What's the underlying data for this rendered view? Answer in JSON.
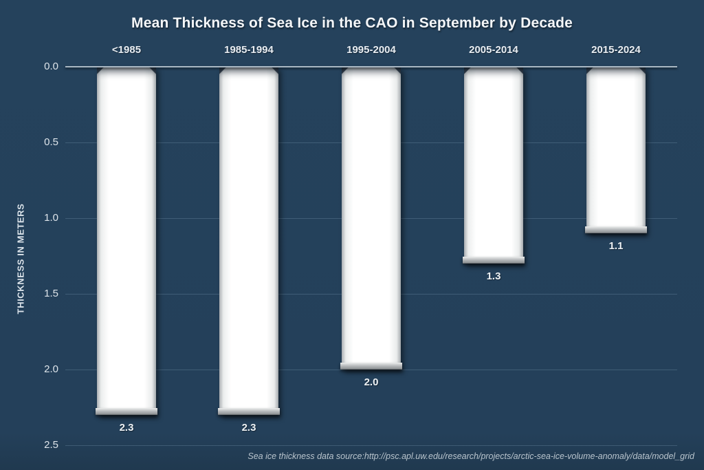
{
  "chart_data": {
    "type": "bar",
    "orientation": "vertical-hanging-from-top",
    "title": "Mean Thickness of Sea Ice in the CAO in September by Decade",
    "categories": [
      "<1985",
      "1985-1994",
      "1995-2004",
      "2005-2014",
      "2015-2024"
    ],
    "values": [
      2.3,
      2.3,
      2.0,
      1.3,
      1.1
    ],
    "value_labels": [
      "2.3",
      "2.3",
      "2.0",
      "1.3",
      "1.1"
    ],
    "xlabel": "",
    "ylabel": "THICKNESS IN METERS",
    "ylim": [
      0,
      2.5
    ],
    "y_axis_inverted": true,
    "yticks": [
      0.0,
      0.5,
      1.0,
      1.5,
      2.0,
      2.5
    ],
    "ytick_labels": [
      "0.0",
      "0.5",
      "1.0",
      "1.5",
      "2.0",
      "2.5"
    ],
    "grid": true,
    "legend": "none",
    "bar_color": "#ffffff",
    "background_color": "#24405a",
    "text_color": "#eef2f5"
  },
  "source": {
    "text": "Sea ice thickness data source:http://psc.apl.uw.edu/research/projects/arctic-sea-ice-volume-anomaly/data/model_grid"
  }
}
